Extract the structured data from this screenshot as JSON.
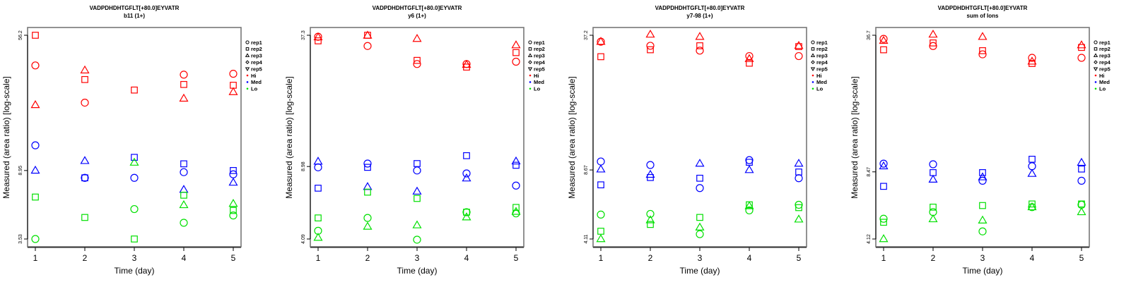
{
  "colors": {
    "Hi": "#ff0000",
    "Med": "#0000ff",
    "Lo": "#00e000"
  },
  "legend": [
    {
      "label": "rep1",
      "shape": "circle-icon"
    },
    {
      "label": "rep2",
      "shape": "square-icon"
    },
    {
      "label": "rep3",
      "shape": "triangle-up-icon"
    },
    {
      "label": "rep4",
      "shape": "diamond-icon"
    },
    {
      "label": "rep5",
      "shape": "triangle-down-icon"
    },
    {
      "label": "Hi",
      "shape": "dot-icon",
      "color": "#ff0000"
    },
    {
      "label": "Med",
      "shape": "dot-icon",
      "color": "#0000ff"
    },
    {
      "label": "Lo",
      "shape": "dot-icon",
      "color": "#00e000"
    }
  ],
  "chart_data": [
    {
      "type": "scatter",
      "title": "VADPDHDHTGFLT[+80.0]EYVATR",
      "subtitle": "b11 (1+)",
      "xlabel": "Time (day)",
      "ylabel": "Measured (area ratio) [log-scale]",
      "yscale": "log",
      "x_ticks": [
        "1",
        "2",
        "3",
        "4",
        "5"
      ],
      "y_ticks": [
        {
          "label": "56.2",
          "value": 56.2
        },
        {
          "label": "8.95",
          "value": 8.95
        },
        {
          "label": "3.53",
          "value": 3.53
        }
      ],
      "ylim": [
        3.53,
        56.2
      ],
      "legend_position": "right",
      "series": [
        {
          "name": "Hi",
          "rep": "rep1",
          "x": [
            1,
            2,
            4,
            5
          ],
          "y": [
            37.3,
            22.5,
            32.9,
            33.3
          ]
        },
        {
          "name": "Hi",
          "rep": "rep2",
          "x": [
            1,
            2,
            3,
            4,
            5
          ],
          "y": [
            56.2,
            30.8,
            26.7,
            28.8,
            28.5
          ]
        },
        {
          "name": "Hi",
          "rep": "rep3",
          "x": [
            1,
            2,
            4,
            5
          ],
          "y": [
            21.8,
            34.9,
            23.8,
            26.0
          ]
        },
        {
          "name": "Med",
          "rep": "rep1",
          "x": [
            1,
            2,
            3,
            4,
            5
          ],
          "y": [
            12.6,
            8.1,
            8.1,
            8.75,
            8.5
          ]
        },
        {
          "name": "Med",
          "rep": "rep2",
          "x": [
            2,
            3,
            4,
            5
          ],
          "y": [
            8.1,
            10.7,
            9.8,
            8.95
          ]
        },
        {
          "name": "Med",
          "rep": "rep3",
          "x": [
            1,
            2,
            4,
            5
          ],
          "y": [
            8.95,
            10.2,
            6.9,
            7.6
          ]
        },
        {
          "name": "Lo",
          "rep": "rep1",
          "x": [
            1,
            3,
            4,
            5
          ],
          "y": [
            3.53,
            5.3,
            4.4,
            4.86
          ]
        },
        {
          "name": "Lo",
          "rep": "rep2",
          "x": [
            1,
            2,
            3,
            4,
            5
          ],
          "y": [
            6.24,
            4.73,
            3.53,
            6.4,
            5.2
          ]
        },
        {
          "name": "Lo",
          "rep": "rep3",
          "x": [
            3,
            4,
            5
          ],
          "y": [
            9.97,
            5.6,
            5.7
          ]
        }
      ]
    },
    {
      "type": "scatter",
      "title": "VADPDHDHTGFLT[+80.0]EYVATR",
      "subtitle": "y6 (1+)",
      "xlabel": "Time (day)",
      "ylabel": "Measured (area ratio) [log-scale]",
      "yscale": "log",
      "x_ticks": [
        "1",
        "2",
        "3",
        "4",
        "5"
      ],
      "y_ticks": [
        {
          "label": "37.3",
          "value": 37.3
        },
        {
          "label": "8.98",
          "value": 8.98
        },
        {
          "label": "4.09",
          "value": 4.09
        }
      ],
      "ylim": [
        4.09,
        37.3
      ],
      "legend_position": "right",
      "series": [
        {
          "name": "Hi",
          "rep": "rep1",
          "x": [
            1,
            2,
            3,
            4,
            5
          ],
          "y": [
            36.7,
            33.2,
            27.3,
            27.3,
            28.0
          ]
        },
        {
          "name": "Hi",
          "rep": "rep2",
          "x": [
            1,
            2,
            3,
            4,
            5
          ],
          "y": [
            35.1,
            37.3,
            28.4,
            26.4,
            30.9
          ]
        },
        {
          "name": "Hi",
          "rep": "rep3",
          "x": [
            1,
            2,
            3,
            4,
            5
          ],
          "y": [
            36.5,
            37.2,
            35.9,
            27.1,
            33.5
          ]
        },
        {
          "name": "Med",
          "rep": "rep1",
          "x": [
            1,
            2,
            3,
            4,
            5
          ],
          "y": [
            8.9,
            9.27,
            8.6,
            8.33,
            7.3
          ]
        },
        {
          "name": "Med",
          "rep": "rep2",
          "x": [
            1,
            2,
            3,
            4,
            5
          ],
          "y": [
            7.1,
            8.9,
            9.27,
            10.1,
            9.1
          ]
        },
        {
          "name": "Med",
          "rep": "rep3",
          "x": [
            1,
            2,
            3,
            4,
            5
          ],
          "y": [
            9.48,
            7.2,
            6.85,
            7.9,
            9.5
          ]
        },
        {
          "name": "Lo",
          "rep": "rep1",
          "x": [
            1,
            2,
            3,
            4,
            5
          ],
          "y": [
            4.47,
            5.14,
            4.06,
            5.47,
            5.4
          ]
        },
        {
          "name": "Lo",
          "rep": "rep2",
          "x": [
            1,
            2,
            3,
            4,
            5
          ],
          "y": [
            5.14,
            6.8,
            6.35,
            5.47,
            5.76
          ]
        },
        {
          "name": "Lo",
          "rep": "rep3",
          "x": [
            1,
            2,
            3,
            4,
            5
          ],
          "y": [
            4.15,
            4.68,
            4.75,
            5.18,
            5.5
          ]
        }
      ]
    },
    {
      "type": "scatter",
      "title": "VADPDHDHTGFLT[+80.0]EYVATR",
      "subtitle": "y7-98 (1+)",
      "xlabel": "Time (day)",
      "ylabel": "Measured (area ratio) [log-scale]",
      "yscale": "log",
      "x_ticks": [
        "1",
        "2",
        "3",
        "4",
        "5"
      ],
      "y_ticks": [
        {
          "label": "37.2",
          "value": 37.2
        },
        {
          "label": "8.67",
          "value": 8.67
        },
        {
          "label": "4.11",
          "value": 4.11
        }
      ],
      "ylim": [
        4.11,
        37.2
      ],
      "legend_position": "right",
      "series": [
        {
          "name": "Hi",
          "rep": "rep1",
          "x": [
            1,
            2,
            3,
            4,
            5
          ],
          "y": [
            34.7,
            33.2,
            31.5,
            29.7,
            29.7
          ]
        },
        {
          "name": "Hi",
          "rep": "rep2",
          "x": [
            1,
            2,
            3,
            4,
            5
          ],
          "y": [
            29.5,
            31.8,
            33.2,
            27.5,
            32.9
          ]
        },
        {
          "name": "Hi",
          "rep": "rep3",
          "x": [
            1,
            2,
            3,
            4,
            5
          ],
          "y": [
            34.7,
            37.5,
            36.6,
            28.8,
            33.2
          ]
        },
        {
          "name": "Med",
          "rep": "rep1",
          "x": [
            1,
            2,
            3,
            4,
            5
          ],
          "y": [
            9.5,
            9.15,
            7.13,
            9.64,
            7.93
          ]
        },
        {
          "name": "Med",
          "rep": "rep2",
          "x": [
            1,
            2,
            3,
            4,
            5
          ],
          "y": [
            7.38,
            7.99,
            7.93,
            9.42,
            8.48
          ]
        },
        {
          "name": "Med",
          "rep": "rep3",
          "x": [
            1,
            2,
            3,
            4,
            5
          ],
          "y": [
            8.73,
            8.24,
            9.29,
            8.67,
            9.29
          ]
        },
        {
          "name": "Lo",
          "rep": "rep1",
          "x": [
            1,
            2,
            3,
            4,
            5
          ],
          "y": [
            5.35,
            5.39,
            4.33,
            5.6,
            5.95
          ]
        },
        {
          "name": "Lo",
          "rep": "rep2",
          "x": [
            1,
            2,
            3,
            4,
            5
          ],
          "y": [
            4.47,
            4.81,
            5.19,
            5.95,
            5.77
          ]
        },
        {
          "name": "Lo",
          "rep": "rep3",
          "x": [
            1,
            2,
            3,
            4,
            5
          ],
          "y": [
            4.11,
            5.04,
            4.66,
            5.87,
            5.08
          ]
        }
      ]
    },
    {
      "type": "scatter",
      "title": "VADPDHDHTGFLT[+80.0]EYVATR",
      "subtitle": "sum of Ions",
      "xlabel": "Time (day)",
      "ylabel": "Measured (area ratio) [log-scale]",
      "yscale": "log",
      "x_ticks": [
        "1",
        "2",
        "3",
        "4",
        "5"
      ],
      "y_ticks": [
        {
          "label": "36.7",
          "value": 36.7
        },
        {
          "label": "8.47",
          "value": 8.47
        },
        {
          "label": "4.12",
          "value": 4.12
        }
      ],
      "ylim": [
        4.12,
        36.7
      ],
      "legend_position": "right",
      "series": [
        {
          "name": "Hi",
          "rep": "rep1",
          "x": [
            1,
            2,
            3,
            4,
            5
          ],
          "y": [
            35.3,
            32.7,
            29.9,
            28.8,
            28.8
          ]
        },
        {
          "name": "Hi",
          "rep": "rep2",
          "x": [
            1,
            2,
            3,
            4,
            5
          ],
          "y": [
            31.4,
            33.8,
            31.1,
            27.1,
            32.2
          ]
        },
        {
          "name": "Hi",
          "rep": "rep3",
          "x": [
            1,
            2,
            3,
            4,
            5
          ],
          "y": [
            34.6,
            37.0,
            36.1,
            27.7,
            33.0
          ]
        },
        {
          "name": "Med",
          "rep": "rep1",
          "x": [
            1,
            2,
            3,
            4,
            5
          ],
          "y": [
            9.25,
            9.19,
            7.7,
            9.0,
            7.7
          ]
        },
        {
          "name": "Med",
          "rep": "rep2",
          "x": [
            1,
            2,
            3,
            4,
            5
          ],
          "y": [
            7.25,
            8.4,
            8.4,
            9.7,
            8.73
          ]
        },
        {
          "name": "Med",
          "rep": "rep3",
          "x": [
            1,
            2,
            3,
            4,
            5
          ],
          "y": [
            9.0,
            7.8,
            8.0,
            8.3,
            9.35
          ]
        },
        {
          "name": "Lo",
          "rep": "rep1",
          "x": [
            1,
            2,
            3,
            4,
            5
          ],
          "y": [
            5.12,
            5.5,
            4.47,
            5.8,
            5.95
          ]
        },
        {
          "name": "Lo",
          "rep": "rep2",
          "x": [
            1,
            2,
            3,
            4,
            5
          ],
          "y": [
            4.93,
            5.8,
            5.9,
            6.0,
            6.0
          ]
        },
        {
          "name": "Lo",
          "rep": "rep3",
          "x": [
            1,
            2,
            3,
            4,
            5
          ],
          "y": [
            4.12,
            5.1,
            5.03,
            5.8,
            5.5
          ]
        }
      ]
    }
  ]
}
